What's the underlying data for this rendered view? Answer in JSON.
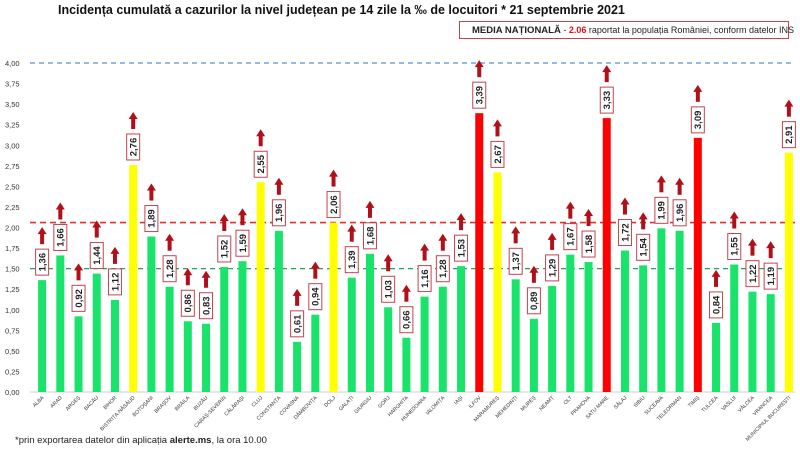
{
  "header": {
    "title": "Incidența cumulată a cazurilor la nivel județean pe 14 zile la ‰ de locuitori * 21 septembrie 2021"
  },
  "legend": {
    "label": "MEDIA NAȚIONALĂ",
    "separator": " - ",
    "value": "2.06",
    "description": " raportat la populația României, conform datelor INS"
  },
  "footnote": {
    "prefix": "*prin exportarea datelor din aplicația ",
    "app": "alerte.ms",
    "suffix": ", la ora 10.00"
  },
  "colors": {
    "green": "#19e36b",
    "yellow": "#ffff00",
    "red": "#ff0000",
    "arrow": "#b0101a",
    "label_border": "#c0454f",
    "line_national": "#e03030",
    "line_green": "#2e9e5a",
    "line_top": "#5a8fd0"
  },
  "chart_data": {
    "type": "bar",
    "title": "Incidența cumulată a cazurilor la nivel județean pe 14 zile la ‰ de locuitori * 21 septembrie 2021",
    "xlabel": "",
    "ylabel": "",
    "ylim": [
      0,
      4
    ],
    "yticks": [
      "0,00",
      "0,25",
      "0,50",
      "0,75",
      "1,00",
      "1,25",
      "1,50",
      "1,75",
      "2,00",
      "2,25",
      "2,50",
      "2,75",
      "3,00",
      "3,25",
      "3,50",
      "3,75",
      "4,00"
    ],
    "grid": false,
    "categories": [
      "ALBA",
      "ARAD",
      "ARGEȘ",
      "BACĂU",
      "BIHOR",
      "BISTRIȚA-NĂSĂUD",
      "BOTOȘANI",
      "BRAȘOV",
      "BRĂILA",
      "BUZĂU",
      "CARAȘ-SEVERIN",
      "CĂLĂRAȘI",
      "CLUJ",
      "CONSTANȚA",
      "COVASNA",
      "DÂMBOVIȚA",
      "DOLJ",
      "GALAȚI",
      "GIURGIU",
      "GORJ",
      "HARGHITA",
      "HUNEDOARA",
      "IALOMIȚA",
      "IAȘI",
      "ILFOV",
      "MARAMUREȘ",
      "MEHEDINȚI",
      "MUREȘ",
      "NEAMȚ",
      "OLT",
      "PRAHOVA",
      "SATU MARE",
      "SĂLAJ",
      "SIBIU",
      "SUCEAVA",
      "TELEORMAN",
      "TIMIȘ",
      "TULCEA",
      "VASLUI",
      "VÂLCEA",
      "VRANCEA",
      "MUNICIPIUL BUCUREȘTI"
    ],
    "values": [
      1.36,
      1.66,
      0.92,
      1.44,
      1.12,
      2.76,
      1.89,
      1.28,
      0.86,
      0.83,
      1.52,
      1.59,
      2.55,
      1.96,
      0.61,
      0.94,
      2.06,
      1.39,
      1.68,
      1.03,
      0.66,
      1.16,
      1.28,
      1.53,
      3.39,
      2.67,
      1.37,
      0.89,
      1.29,
      1.67,
      1.58,
      3.33,
      1.72,
      1.54,
      1.99,
      1.96,
      3.09,
      0.84,
      1.55,
      1.22,
      1.19,
      2.91
    ],
    "labels": [
      "1,36",
      "1,66",
      "0,92",
      "1,44",
      "1,12",
      "2,76",
      "1,89",
      "1,28",
      "0,86",
      "0,83",
      "1,52",
      "1,59",
      "2,55",
      "1,96",
      "0,61",
      "0,94",
      "2,06",
      "1,39",
      "1,68",
      "1,03",
      "0,66",
      "1,16",
      "1,28",
      "1,53",
      "3,39",
      "2,67",
      "1,37",
      "0,89",
      "1,29",
      "1,67",
      "1,58",
      "3,33",
      "1,72",
      "1,54",
      "1,99",
      "1,96",
      "3,09",
      "0,84",
      "1,55",
      "1,22",
      "1,19",
      "2,91"
    ],
    "bar_colors": [
      "green",
      "green",
      "green",
      "green",
      "green",
      "yellow",
      "green",
      "green",
      "green",
      "green",
      "green",
      "green",
      "yellow",
      "green",
      "green",
      "green",
      "yellow",
      "green",
      "green",
      "green",
      "green",
      "green",
      "green",
      "green",
      "red",
      "yellow",
      "green",
      "green",
      "green",
      "green",
      "green",
      "red",
      "green",
      "green",
      "green",
      "green",
      "red",
      "green",
      "green",
      "green",
      "green",
      "yellow"
    ],
    "trend": "up-arrow on every bar",
    "reference_lines": [
      {
        "value": 4.0,
        "style": "dashed",
        "color": "line_top"
      },
      {
        "value": 2.06,
        "style": "dashed",
        "color": "line_national",
        "label": "MEDIA NAȚIONALĂ"
      },
      {
        "value": 1.5,
        "style": "dashed",
        "color": "line_green"
      }
    ]
  }
}
